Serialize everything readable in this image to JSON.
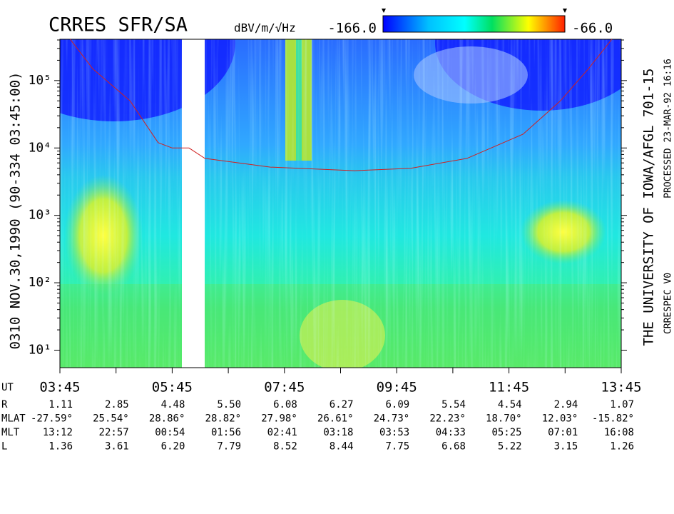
{
  "chart_data": {
    "type": "spectrogram",
    "title": "CRRES SFR/SA",
    "side_label": "0310  NOV.30,1990  (90-334 03:45:00)",
    "credit": "THE UNIVERSITY OF IOWA/AFGL 701-15",
    "processed": "PROCESSED 23-MAR-92  16:16",
    "version": "CRRESPEC V0",
    "colorbar": {
      "label": "dBV/m/√Hz",
      "min": {
        "value": -166,
        "label": "-166.0"
      },
      "max": {
        "value": -66,
        "label": "-66.0"
      }
    },
    "log_y": true,
    "xlim": [
      225,
      825
    ],
    "ylim": [
      5.5,
      410000
    ],
    "xticks": [
      {
        "value": 225,
        "label": "03:45"
      },
      {
        "value": 345,
        "label": "05:45"
      },
      {
        "value": 465,
        "label": "07:45"
      },
      {
        "value": 585,
        "label": "09:45"
      },
      {
        "value": 705,
        "label": "11:45"
      },
      {
        "value": 825,
        "label": "13:45"
      }
    ],
    "xminorticks": [
      285,
      405,
      525,
      645,
      765
    ],
    "yticks": [
      {
        "value": 10,
        "label": "10¹"
      },
      {
        "value": 100,
        "label": "10²"
      },
      {
        "value": 1000,
        "label": "10³"
      },
      {
        "value": 10000,
        "label": "10⁴"
      },
      {
        "value": 100000,
        "label": "10⁵"
      }
    ],
    "line": {
      "color": "#d02020",
      "x": [
        236,
        260,
        300,
        330,
        345,
        363,
        380,
        450,
        540,
        600,
        660,
        720,
        760,
        790,
        815
      ],
      "y": [
        410000,
        150000,
        50000,
        12000,
        10000,
        10000,
        7000,
        5200,
        4600,
        5000,
        7000,
        16000,
        50000,
        150000,
        410000
      ]
    },
    "ephemeris": {
      "ut_label": "UT",
      "rows": [
        {
          "label": "R",
          "values": [
            "1.11",
            "2.85",
            "4.48",
            "5.50",
            "6.08",
            "6.27",
            "6.09",
            "5.54",
            "4.54",
            "2.94",
            "1.07"
          ]
        },
        {
          "label": "MLAT",
          "values": [
            "-27.59°",
            "25.54°",
            "28.86°",
            "28.82°",
            "27.98°",
            "26.61°",
            "24.73°",
            "22.23°",
            "18.70°",
            "12.03°",
            "-15.82°"
          ]
        },
        {
          "label": "MLT",
          "values": [
            "13:12",
            "22:57",
            "00:54",
            "01:56",
            "02:41",
            "03:18",
            "03:53",
            "04:33",
            "05:25",
            "07:01",
            "16:08"
          ]
        },
        {
          "label": "L",
          "values": [
            "1.36",
            "3.61",
            "6.20",
            "7.79",
            "8.52",
            "8.44",
            "7.75",
            "6.68",
            "5.22",
            "3.15",
            "1.26"
          ]
        }
      ]
    }
  }
}
